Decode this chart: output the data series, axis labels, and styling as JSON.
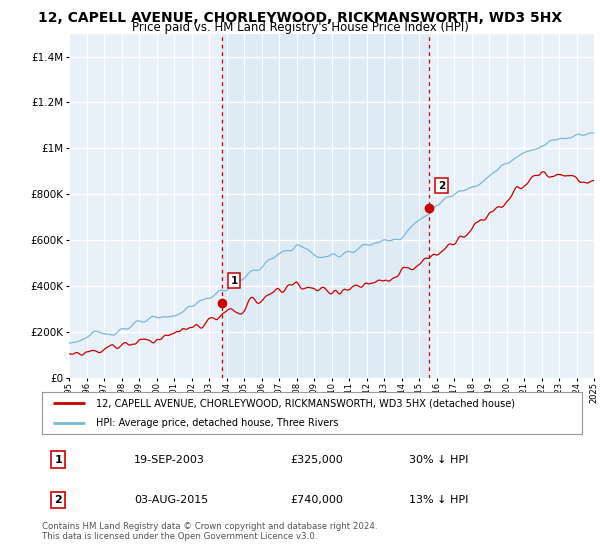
{
  "title": "12, CAPELL AVENUE, CHORLEYWOOD, RICKMANSWORTH, WD3 5HX",
  "subtitle": "Price paid vs. HM Land Registry's House Price Index (HPI)",
  "ylim": [
    0,
    1500000
  ],
  "yticks": [
    0,
    200000,
    400000,
    600000,
    800000,
    1000000,
    1200000,
    1400000
  ],
  "year_start": 1995,
  "year_end": 2025,
  "hpi_color": "#7ab8d9",
  "hpi_fill_color": "#daeaf5",
  "price_color": "#cc0000",
  "sale1_year": 2003.72,
  "sale1_price": 325000,
  "sale2_year": 2015.58,
  "sale2_price": 740000,
  "legend_house": "12, CAPELL AVENUE, CHORLEYWOOD, RICKMANSWORTH, WD3 5HX (detached house)",
  "legend_hpi": "HPI: Average price, detached house, Three Rivers",
  "table_row1": [
    "1",
    "19-SEP-2003",
    "£325,000",
    "30% ↓ HPI"
  ],
  "table_row2": [
    "2",
    "03-AUG-2015",
    "£740,000",
    "13% ↓ HPI"
  ],
  "footnote": "Contains HM Land Registry data © Crown copyright and database right 2024.\nThis data is licensed under the Open Government Licence v3.0.",
  "background_color": "#e8f0f8",
  "grid_color": "#ffffff",
  "title_fontsize": 10,
  "subtitle_fontsize": 8.5
}
